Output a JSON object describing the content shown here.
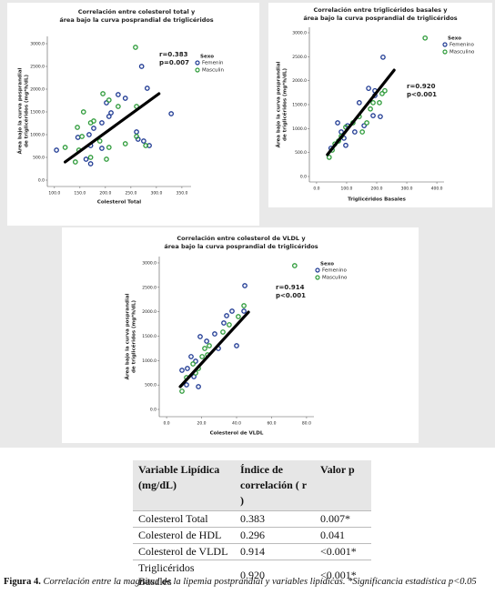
{
  "chart_data": [
    {
      "type": "scatter",
      "title": [
        "Correlación entre colesterol total y",
        "área bajo la curva posprandial de triglicéridos"
      ],
      "x_label": "Colesterol Total",
      "y_label": [
        "Área bajo la curva posprandial",
        "de triglicéridos (mg*h/dL)"
      ],
      "annotation": [
        "r=0.383",
        "p=0.007"
      ],
      "legend_title": "Sexo",
      "xlim": [
        86,
        368
      ],
      "ylim": [
        -140,
        3160
      ],
      "xticks": [
        {
          "value": 100,
          "label": "100.0"
        },
        {
          "value": 150,
          "label": "150.0"
        },
        {
          "value": 200,
          "label": "200.0"
        },
        {
          "value": 250,
          "label": "250.0"
        },
        {
          "value": 300,
          "label": "300.0"
        },
        {
          "value": 350,
          "label": "350.0"
        }
      ],
      "yticks": [
        {
          "value": 0,
          "label": "0.0"
        },
        {
          "value": 500,
          "label": "500.0"
        },
        {
          "value": 1000,
          "label": "1000.0"
        },
        {
          "value": 1500,
          "label": "1500.0"
        },
        {
          "value": 2000,
          "label": "2000.0"
        },
        {
          "value": 2500,
          "label": "2500.0"
        },
        {
          "value": 3000,
          "label": "3000.0"
        }
      ],
      "series": [
        {
          "name": "Femenin",
          "color": "#1f3a93",
          "x": [
            271,
            282,
            225,
            239,
            202,
            211,
            207,
            193,
            177,
            168,
            146,
            171,
            193,
            261,
            264,
            275,
            286,
            329,
            162,
            171,
            104
          ],
          "y": [
            2500,
            2020,
            1880,
            1800,
            1700,
            1480,
            1400,
            1260,
            1140,
            1000,
            940,
            760,
            700,
            1060,
            900,
            860,
            760,
            1460,
            460,
            360,
            660
          ]
        },
        {
          "name": "Masculin",
          "color": "#2e9b3a",
          "x": [
            259,
            195,
            207,
            261,
            225,
            177,
            157,
            171,
            145,
            154,
            189,
            207,
            239,
            279,
            148,
            121,
            171,
            141,
            202,
            261
          ],
          "y": [
            2920,
            1900,
            1760,
            1620,
            1620,
            1300,
            1500,
            1260,
            1160,
            960,
            860,
            720,
            800,
            760,
            660,
            720,
            500,
            400,
            460,
            960
          ]
        }
      ],
      "fit": {
        "x": [
          121,
          305
        ],
        "y": [
          400,
          1900
        ]
      }
    },
    {
      "type": "scatter",
      "title": [
        "Correlación entre triglicéridos basales y",
        "área bajo la curva posprandial de triglicéridos"
      ],
      "x_label": "Triglicéridos Basales",
      "y_label": [
        "Área bajo la curva posprandial",
        "de triglicéridos (mg*h/dL)"
      ],
      "annotation": [
        "r=0.920",
        "p<0.001"
      ],
      "legend_title": "Sexo",
      "xlim": [
        -24,
        424
      ],
      "ylim": [
        -114,
        3114
      ],
      "xticks": [
        {
          "value": 0,
          "label": "0.0"
        },
        {
          "value": 100,
          "label": "100.0"
        },
        {
          "value": 200,
          "label": "200.0"
        },
        {
          "value": 300,
          "label": "300.0"
        },
        {
          "value": 400,
          "label": "400.0"
        }
      ],
      "yticks": [
        {
          "value": 0,
          "label": "0.0"
        },
        {
          "value": 500,
          "label": "500.0"
        },
        {
          "value": 1000,
          "label": "1000.0"
        },
        {
          "value": 1500,
          "label": "1500.0"
        },
        {
          "value": 2000,
          "label": "2000.0"
        },
        {
          "value": 2500,
          "label": "2500.0"
        },
        {
          "value": 3000,
          "label": "3000.0"
        }
      ],
      "series": [
        {
          "name": "Femenino",
          "color": "#1f3a93",
          "x": [
            221,
            142,
            173,
            194,
            212,
            188,
            158,
            103,
            91,
            70,
            48,
            82,
            127,
            194,
            97
          ],
          "y": [
            2490,
            1540,
            1840,
            1690,
            1250,
            1270,
            1060,
            1060,
            800,
            1120,
            590,
            930,
            930,
            1790,
            650
          ]
        },
        {
          "name": "Masculino",
          "color": "#2e9b3a",
          "x": [
            361,
            227,
            218,
            209,
            188,
            167,
            142,
            121,
            97,
            82,
            73,
            61,
            52,
            42,
            152,
            179
          ],
          "y": [
            2890,
            1790,
            1730,
            1540,
            1540,
            1120,
            1250,
            1120,
            1030,
            840,
            740,
            680,
            550,
            400,
            930,
            1410
          ]
        }
      ],
      "fit": {
        "x": [
          36,
          258
        ],
        "y": [
          456,
          2220
        ]
      }
    },
    {
      "type": "scatter",
      "title": [
        "Correlación entre colesterol de VLDL y",
        "área bajo la curva posprandial de triglicéridos"
      ],
      "x_label": "Colesterol de VLDL",
      "y_label": [
        "Área bajo la curva posprandial",
        "de triglicéridos (mg*h/dL)"
      ],
      "annotation": [
        "r=0.914",
        "p<0.001"
      ],
      "legend_title": "Sexo",
      "xlim": [
        -4.2,
        84.2
      ],
      "ylim": [
        -149,
        3130
      ],
      "xticks": [
        {
          "value": 0,
          "label": "0.0"
        },
        {
          "value": 20,
          "label": "20.0"
        },
        {
          "value": 40,
          "label": "40.0"
        },
        {
          "value": 60,
          "label": "60.0"
        },
        {
          "value": 80,
          "label": "80.0"
        }
      ],
      "yticks": [
        {
          "value": 0,
          "label": "0.0"
        },
        {
          "value": 500,
          "label": "500.0"
        },
        {
          "value": 1000,
          "label": "1000.0"
        },
        {
          "value": 1500,
          "label": "1500.0"
        },
        {
          "value": 2000,
          "label": "2000.0"
        },
        {
          "value": 2500,
          "label": "2500.0"
        },
        {
          "value": 3000,
          "label": "3000.0"
        }
      ],
      "series": [
        {
          "name": "Femenino",
          "color": "#1f3a93",
          "x": [
            44.7,
            37.4,
            44.2,
            34.3,
            32.7,
            27.5,
            19.2,
            22.9,
            29.6,
            40,
            14,
            16.6,
            8.8,
            15.6,
            11.4,
            18.2,
            11.9
          ],
          "y": [
            2534,
            2012,
            2012,
            1919,
            1770,
            1546,
            1490,
            1397,
            1248,
            1304,
            1081,
            987,
            801,
            671,
            503,
            466,
            838
          ]
        },
        {
          "name": "Masculino",
          "color": "#2e9b3a",
          "x": [
            73.2,
            44.2,
            41,
            35.8,
            32.2,
            24.4,
            21.8,
            20.3,
            15.1,
            18.2,
            11.4,
            8.8,
            16.6,
            23.4
          ],
          "y": [
            2943,
            2124,
            1900,
            1733,
            1584,
            1304,
            1248,
            1081,
            931,
            838,
            652,
            373,
            745,
            1118
          ]
        }
      ],
      "fit": {
        "x": [
          7.8,
          46.8
        ],
        "y": [
          466,
          1993
        ]
      }
    }
  ],
  "table": {
    "header": [
      "Variable Lipídica (mg/dL)",
      "Índice de correlación ( r )",
      "Valor p"
    ],
    "rows": [
      [
        "Colesterol Total",
        "0.383",
        "0.007*"
      ],
      [
        "Colesterol de HDL",
        "0.296",
        "0.041"
      ],
      [
        "Colesterol de VLDL",
        "0.914",
        "<0.001*"
      ],
      [
        "Triglicéridos Basales",
        "0.920",
        "<0.001*"
      ]
    ]
  },
  "caption": {
    "label": "Figura 4.",
    "text": "Correlación entre la magnitud de la lipemia postprandial y variables lipídicas. *Significancia estadística p<0.05"
  }
}
